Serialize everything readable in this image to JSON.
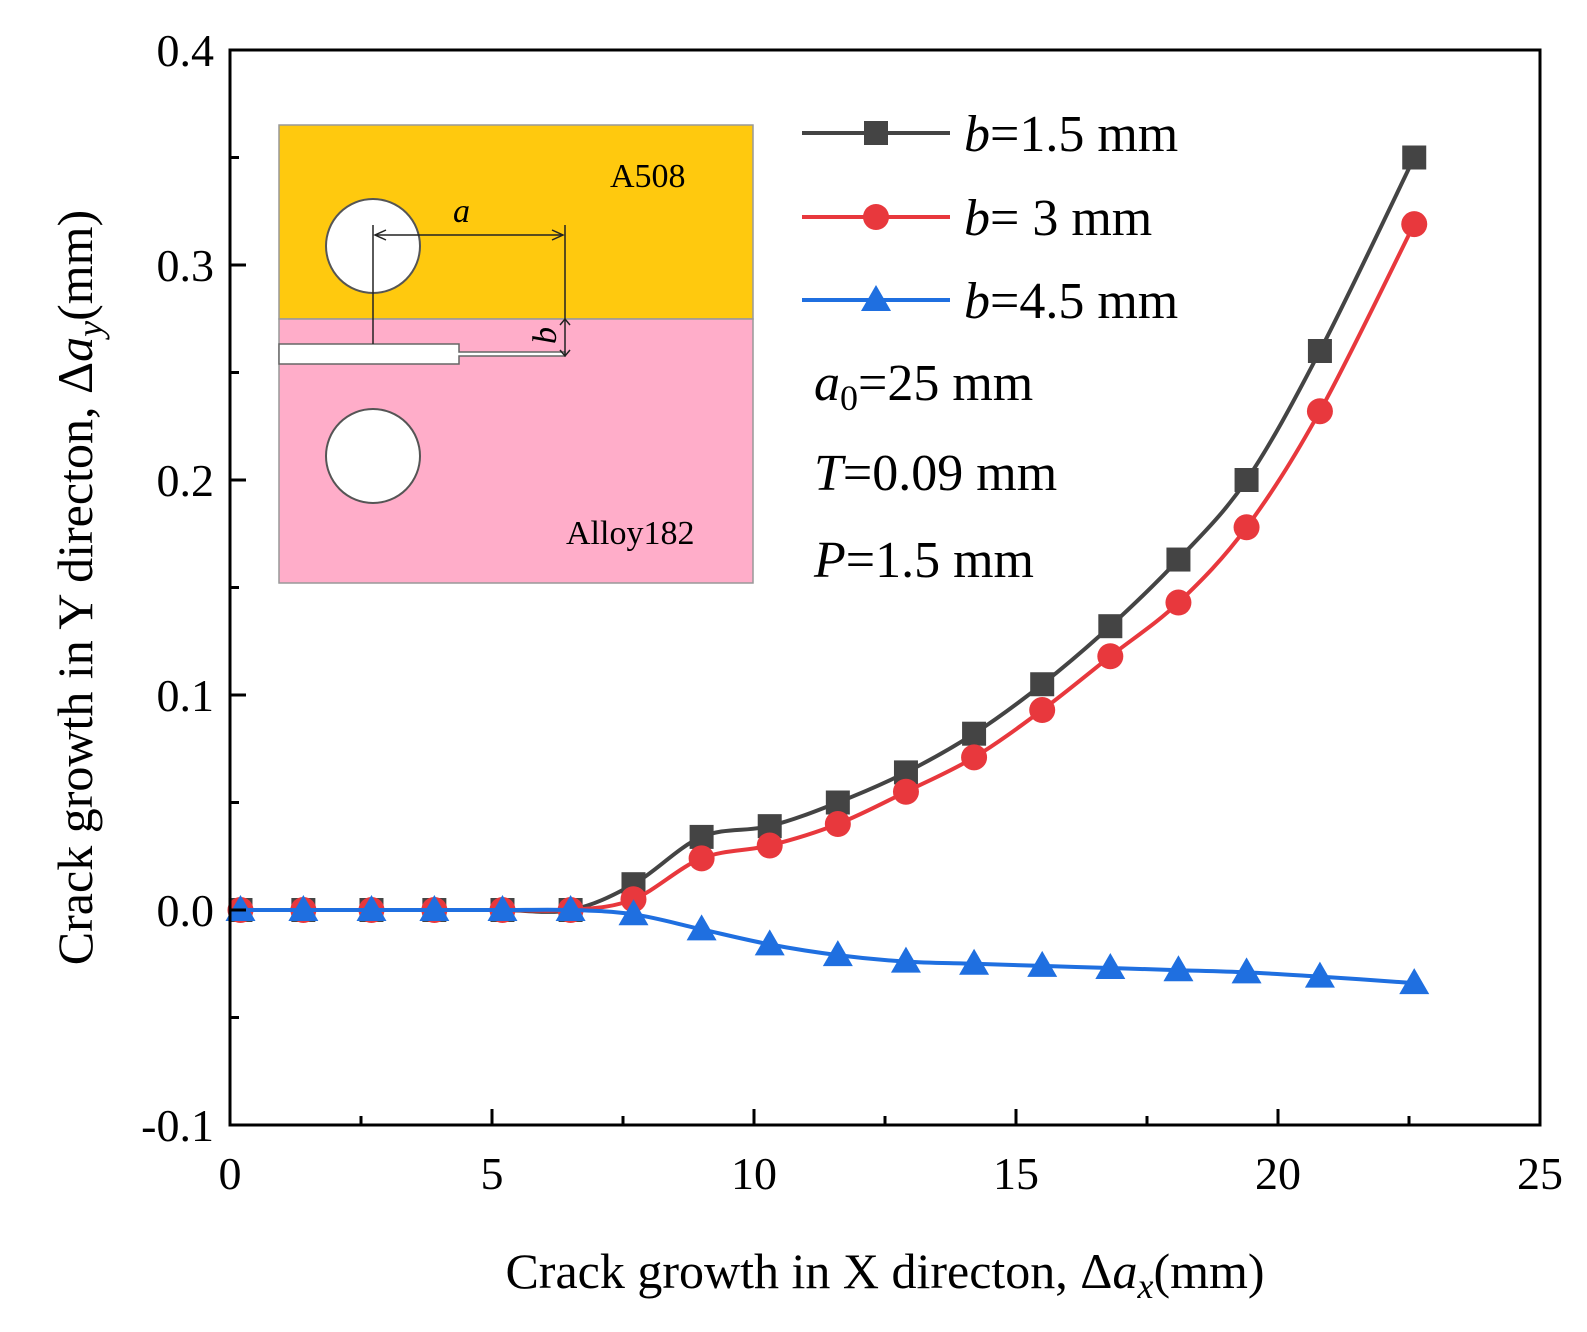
{
  "chart_data": {
    "type": "line",
    "title": "",
    "xlabel": {
      "prefix": "Crack growth in X directon, Δ",
      "var": "a",
      "sub": "x",
      "unit": "(mm)"
    },
    "ylabel": {
      "prefix": "Crack growth in Y directon, Δ",
      "var": "a",
      "sub": "y",
      "unit": "(mm)"
    },
    "xlim": [
      0,
      25
    ],
    "ylim": [
      -0.1,
      0.4
    ],
    "xticks": [
      0,
      5,
      10,
      15,
      20,
      25
    ],
    "xtick_labels": [
      "0",
      "5",
      "10",
      "15",
      "20",
      "25"
    ],
    "yticks": [
      -0.1,
      0.0,
      0.1,
      0.2,
      0.3,
      0.4
    ],
    "ytick_labels": [
      "-0.1",
      "0.0",
      "0.1",
      "0.2",
      "0.3",
      "0.4"
    ],
    "grid": false,
    "legend_position": "top-right",
    "series": [
      {
        "name": "b=1.5 mm",
        "label_var": "b",
        "label_rest": "=1.5 mm",
        "color": "#444444",
        "marker": "square",
        "x": [
          0.2,
          1.4,
          2.7,
          3.9,
          5.2,
          6.5,
          7.7,
          9.0,
          10.3,
          11.6,
          12.9,
          14.2,
          15.5,
          16.8,
          18.1,
          19.4,
          20.8,
          22.6
        ],
        "y": [
          0,
          0,
          0,
          0,
          0,
          0,
          0.012,
          0.034,
          0.039,
          0.05,
          0.064,
          0.082,
          0.105,
          0.132,
          0.163,
          0.2,
          0.26,
          0.35
        ]
      },
      {
        "name": "b= 3 mm",
        "label_var": "b",
        "label_rest": "= 3   mm",
        "color": "#e8383d",
        "marker": "circle",
        "x": [
          0.2,
          1.4,
          2.7,
          3.9,
          5.2,
          6.5,
          7.7,
          9.0,
          10.3,
          11.6,
          12.9,
          14.2,
          15.5,
          16.8,
          18.1,
          19.4,
          20.8,
          22.6
        ],
        "y": [
          0,
          0,
          0,
          0,
          0,
          0,
          0.005,
          0.024,
          0.03,
          0.04,
          0.055,
          0.071,
          0.093,
          0.118,
          0.143,
          0.178,
          0.232,
          0.319
        ]
      },
      {
        "name": "b=4.5 mm",
        "label_var": "b",
        "label_rest": "=4.5 mm",
        "color": "#1f6fe0",
        "marker": "triangle",
        "x": [
          0.2,
          1.4,
          2.7,
          3.9,
          5.2,
          6.5,
          7.7,
          9.0,
          10.3,
          11.6,
          12.9,
          14.2,
          15.5,
          16.8,
          18.1,
          19.4,
          20.8,
          22.6
        ],
        "y": [
          0,
          0,
          0,
          0,
          0,
          0,
          -0.002,
          -0.009,
          -0.016,
          -0.021,
          -0.024,
          -0.025,
          -0.026,
          -0.027,
          -0.028,
          -0.029,
          -0.031,
          -0.034
        ]
      }
    ],
    "annotations": [
      {
        "var": "a",
        "sub": "0",
        "rest": "=25 mm"
      },
      {
        "var": "T",
        "sub": "",
        "rest": "=0.09 mm"
      },
      {
        "var": "P",
        "sub": "",
        "rest": "=1.5 mm"
      }
    ],
    "inset": {
      "top_material": "A508",
      "bottom_material": "Alloy182",
      "dim_a": "a",
      "dim_b": "b",
      "top_color": "#ffc90e",
      "bottom_color": "#ffadc9"
    }
  }
}
